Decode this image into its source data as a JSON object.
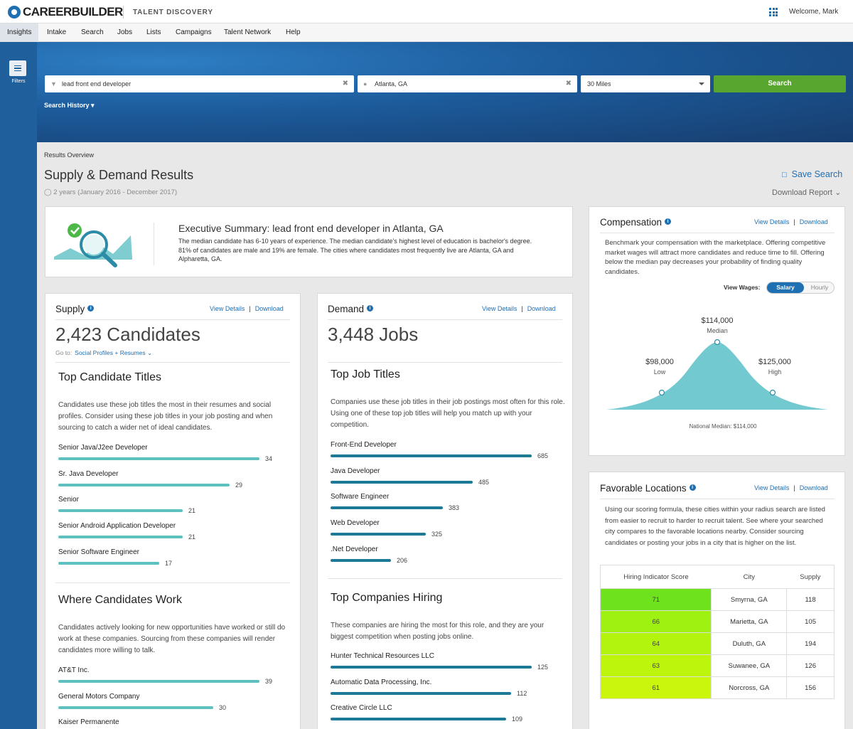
{
  "header": {
    "logo_text": "CAREERBUILDER",
    "product": "TALENT DISCOVERY",
    "welcome": "Welcome, Mark",
    "apps_icon": "grid-icon"
  },
  "nav": {
    "items": [
      "Insights",
      "Intake",
      "Search",
      "Jobs",
      "Lists",
      "Campaigns",
      "Talent Network",
      "Help"
    ]
  },
  "sidebar": {
    "filters_label": "Filters"
  },
  "search": {
    "keyword": "lead front end developer",
    "location": "Atlanta, GA",
    "radius": "30 Miles",
    "button": "Search",
    "history": "Search History"
  },
  "page": {
    "breadcrumb": "Results Overview",
    "title": "Supply & Demand Results",
    "date_range": "2 years (January 2016 - December 2017)",
    "save_search": "Save Search",
    "download_report": "Download Report"
  },
  "exec": {
    "title": "Executive Summary: lead front end developer in Atlanta, GA",
    "body": "The median candidate has 6-10 years of experience. The median candidate's highest level of education is bachelor's degree. 81% of candidates are male and 19% are female. The cities where candidates most frequently live are Atlanta, GA and Alpharetta, GA."
  },
  "links": {
    "view_details": "View Details",
    "download": "Download",
    "sep": "|"
  },
  "supply": {
    "title": "Supply",
    "count": "2,423 Candidates",
    "goto_label": "Go to:",
    "goto_link": "Social Profiles + Resumes",
    "titles_heading": "Top Candidate Titles",
    "titles_desc": "Candidates use these job titles the most in their resumes and social profiles. Consider using these job titles in your job posting and when sourcing to catch a wider net of ideal candidates.",
    "titles": [
      {
        "label": "Senior Java/J2ee Developer",
        "value": 34
      },
      {
        "label": "Sr. Java Developer",
        "value": 29
      },
      {
        "label": "Senior",
        "value": 21
      },
      {
        "label": "Senior Android Application Developer",
        "value": 21
      },
      {
        "label": "Senior Software Engineer",
        "value": 17
      }
    ],
    "work_heading": "Where Candidates Work",
    "work_desc": "Candidates actively looking for new opportunities have worked or still do work at these companies. Sourcing from these companies will render candidates more willing to talk.",
    "companies": [
      {
        "label": "AT&T Inc.",
        "value": 39
      },
      {
        "label": "General Motors Company",
        "value": 30
      },
      {
        "label": "Kaiser Permanente",
        "value": null
      }
    ]
  },
  "demand": {
    "title": "Demand",
    "count": "3,448 Jobs",
    "titles_heading": "Top Job Titles",
    "titles_desc": "Companies use these job titles in their job postings most often for this role. Using one of these top job titles will help you match up with your competition.",
    "titles": [
      {
        "label": "Front-End Developer",
        "value": 685
      },
      {
        "label": "Java Developer",
        "value": 485
      },
      {
        "label": "Software Engineer",
        "value": 383
      },
      {
        "label": "Web Developer",
        "value": 325
      },
      {
        "label": ".Net Developer",
        "value": 206
      }
    ],
    "hiring_heading": "Top Companies Hiring",
    "hiring_desc": "These companies are hiring the most for this role, and they are your biggest competition when posting jobs online.",
    "companies": [
      {
        "label": "Hunter Technical Resources LLC",
        "value": 125
      },
      {
        "label": "Automatic Data Processing, Inc.",
        "value": 112
      },
      {
        "label": "Creative Circle LLC",
        "value": 109
      }
    ]
  },
  "compensation": {
    "title": "Compensation",
    "desc": "Benchmark your compensation with the marketplace. Offering competitive market wages will attract more candidates and reduce time to fill. Offering below the median pay decreases your probability of finding quality candidates.",
    "view_wages": "View Wages:",
    "toggle_on": "Salary",
    "toggle_off": "Hourly",
    "low_value": "$98,000",
    "low_label": "Low",
    "median_value": "$114,000",
    "median_label": "Median",
    "high_value": "$125,000",
    "high_label": "High",
    "national": "National Median: $114,000"
  },
  "locations": {
    "title": "Favorable Locations",
    "desc": "Using our scoring formula, these cities within your radius search are listed from easier to recruit to harder to recruit talent. See where your searched city compares to the favorable locations nearby. Consider sourcing candidates or posting your jobs in a city that is higher on the list.",
    "headers": [
      "Hiring Indicator Score",
      "City",
      "Supply"
    ],
    "rows": [
      {
        "score": "71",
        "city": "Smyrna, GA",
        "supply": "118",
        "color": "#6ee21c"
      },
      {
        "score": "66",
        "city": "Marietta, GA",
        "supply": "105",
        "color": "#9ff112"
      },
      {
        "score": "64",
        "city": "Duluth, GA",
        "supply": "194",
        "color": "#b2f40e"
      },
      {
        "score": "63",
        "city": "Suwanee, GA",
        "supply": "126",
        "color": "#bdf50d"
      },
      {
        "score": "61",
        "city": "Norcross, GA",
        "supply": "156",
        "color": "#c9f60c"
      }
    ]
  },
  "colors": {
    "supply_bar": "#5ec0bf",
    "demand_bar": "#1d7a96",
    "curve": "#72c9cf",
    "accent": "#1f6fb3",
    "search_btn": "#58a630"
  }
}
